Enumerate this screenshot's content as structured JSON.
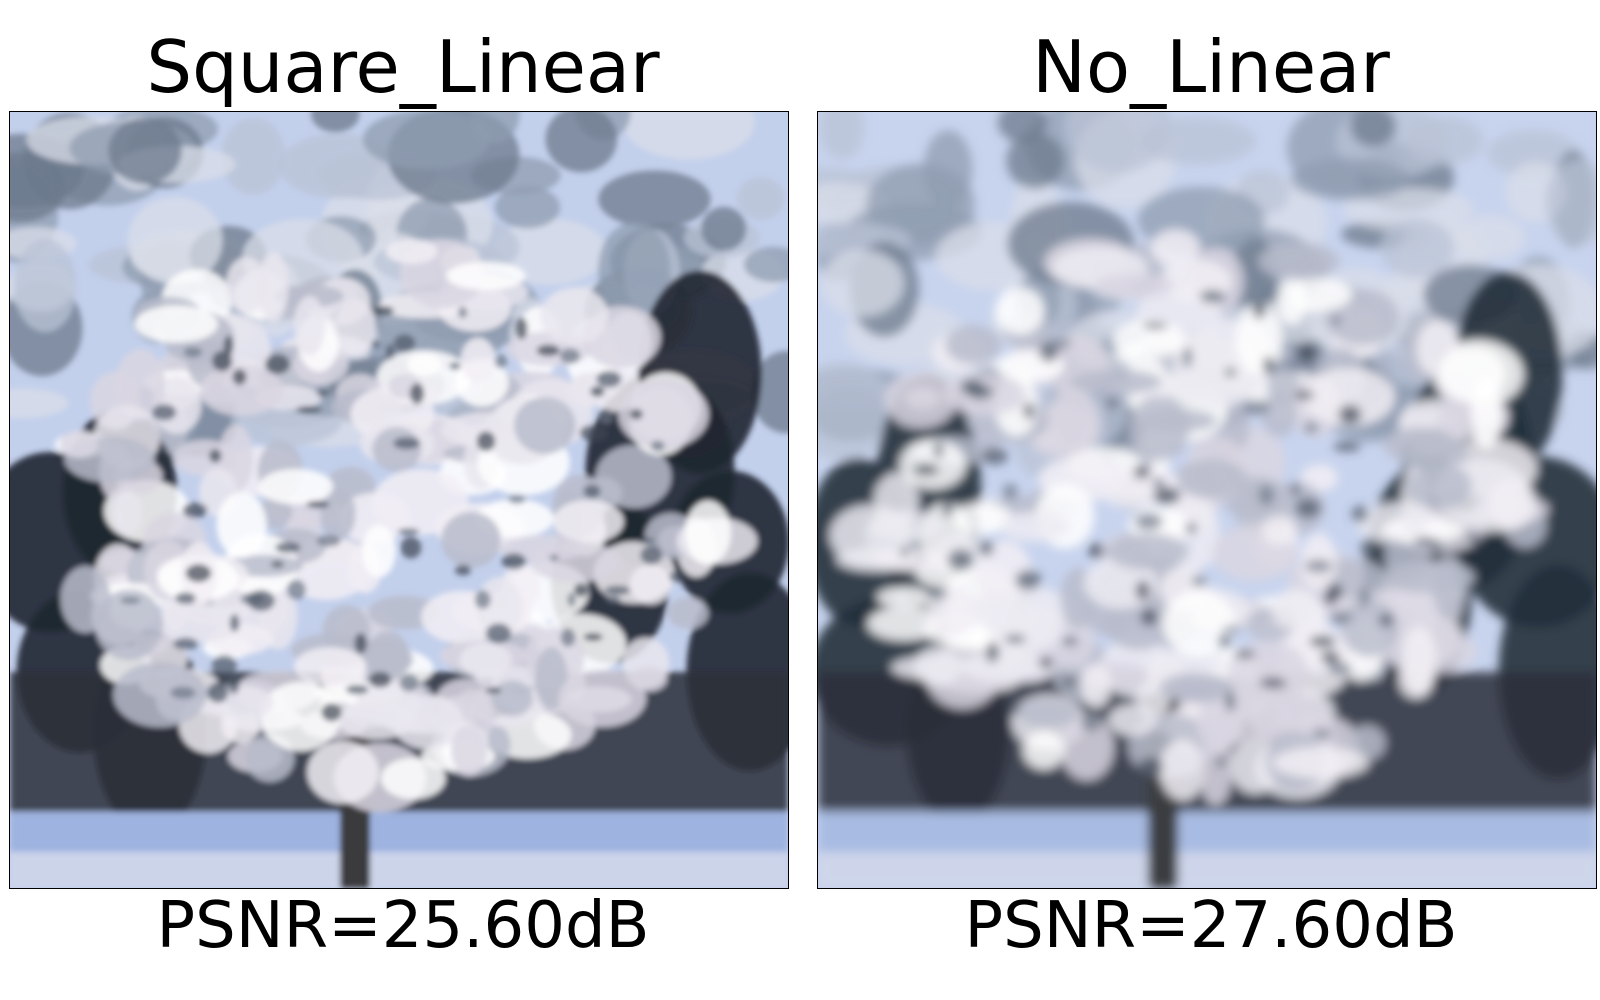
{
  "panels": [
    {
      "title": "Square_Linear",
      "psnr": "PSNR=25.60dB",
      "image": {
        "subject": "snow-covered-tree",
        "colors": {
          "sky": "#c3d0ec",
          "foliage": "#e9e6ef",
          "evergreen": "#1f2530",
          "snow_ground": "#9fb3e0",
          "trunk": "#3a3a3c"
        }
      }
    },
    {
      "title": "No_Linear",
      "psnr": "PSNR=27.60dB",
      "image": {
        "subject": "snow-covered-tree",
        "colors": {
          "sky": "#c8d4ee",
          "foliage": "#ecebf2",
          "evergreen": "#24303b",
          "snow_ground": "#a8bbe2",
          "trunk": "#3b3d40"
        }
      }
    }
  ]
}
